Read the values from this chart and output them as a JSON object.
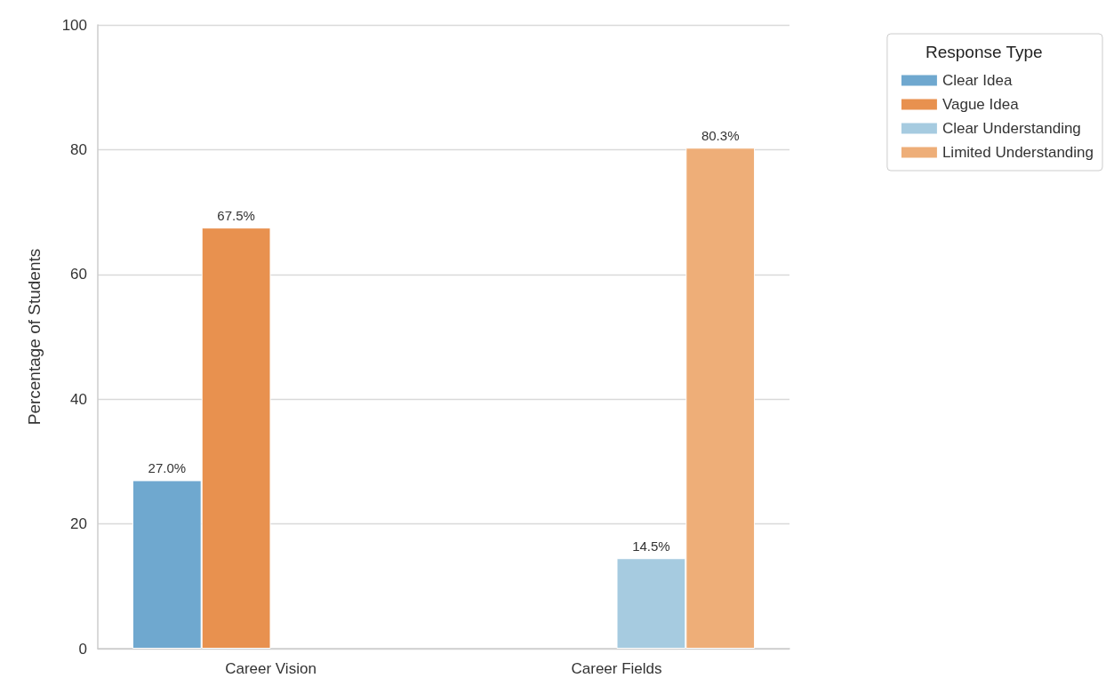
{
  "chart_data": {
    "type": "bar",
    "ylabel": "Percentage of Students",
    "legend_title": "Response Type",
    "categories": [
      "Career Vision",
      "Career Fields"
    ],
    "series": [
      {
        "name": "Clear Idea",
        "color": "#6fa8cf",
        "values": [
          27.0,
          null
        ],
        "value_labels": [
          "27.0%",
          null
        ]
      },
      {
        "name": "Vague Idea",
        "color": "#e8914f",
        "values": [
          67.5,
          null
        ],
        "value_labels": [
          "67.5%",
          null
        ]
      },
      {
        "name": "Clear Understanding",
        "color": "#a6cbe0",
        "values": [
          null,
          14.5
        ],
        "value_labels": [
          null,
          "14.5%"
        ]
      },
      {
        "name": "Limited Understanding",
        "color": "#eeae78",
        "values": [
          null,
          80.3
        ],
        "value_labels": [
          null,
          "80.3%"
        ]
      }
    ],
    "ylim": [
      0,
      100
    ],
    "yticks": [
      0,
      20,
      40,
      60,
      80,
      100
    ],
    "grid": "y",
    "legend": "top right"
  }
}
